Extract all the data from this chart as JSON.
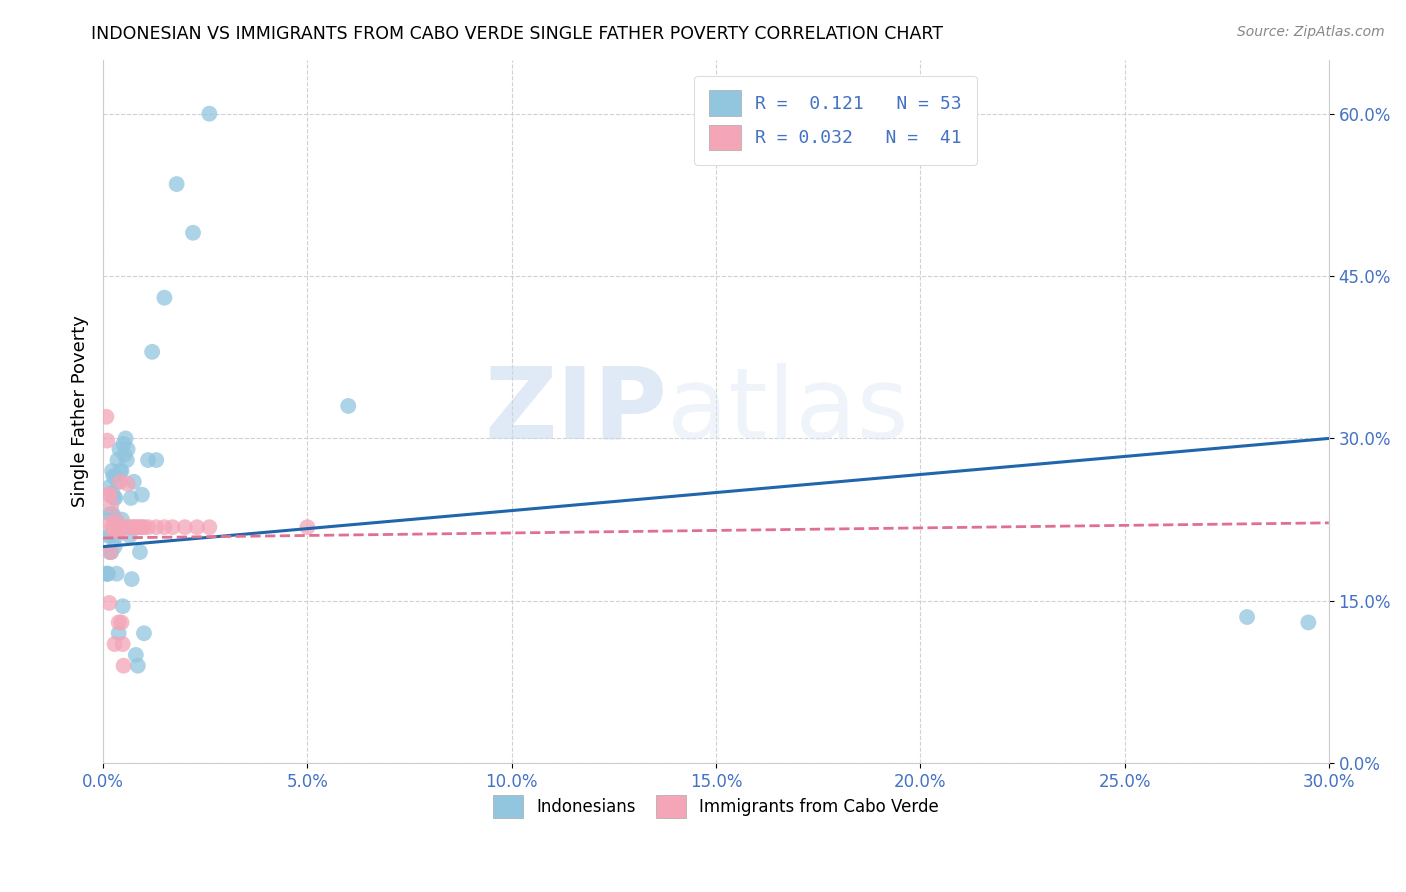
{
  "title": "INDONESIAN VS IMMIGRANTS FROM CABO VERDE SINGLE FATHER POVERTY CORRELATION CHART",
  "source": "Source: ZipAtlas.com",
  "ylabel_label": "Single Father Poverty",
  "legend_label_1": "Indonesians",
  "legend_label_2": "Immigrants from Cabo Verde",
  "R1": 0.121,
  "N1": 53,
  "R2": 0.032,
  "N2": 41,
  "color_blue": "#92c5de",
  "color_pink": "#f4a5b8",
  "line_color_blue": "#2166ac",
  "line_color_pink": "#e07090",
  "blue_dots_x": [
    0.0008,
    0.001,
    0.0012,
    0.0013,
    0.0015,
    0.0016,
    0.0017,
    0.0018,
    0.002,
    0.002,
    0.0022,
    0.0023,
    0.0024,
    0.0025,
    0.0026,
    0.0027,
    0.0028,
    0.003,
    0.003,
    0.0032,
    0.0033,
    0.0035,
    0.0036,
    0.0038,
    0.004,
    0.0042,
    0.0045,
    0.0046,
    0.0048,
    0.005,
    0.0052,
    0.0055,
    0.0058,
    0.006,
    0.0065,
    0.0068,
    0.007,
    0.0075,
    0.008,
    0.0085,
    0.009,
    0.0095,
    0.01,
    0.011,
    0.012,
    0.013,
    0.015,
    0.018,
    0.022,
    0.026,
    0.06,
    0.28,
    0.295
  ],
  "blue_dots_y": [
    0.175,
    0.175,
    0.175,
    0.21,
    0.255,
    0.195,
    0.23,
    0.21,
    0.23,
    0.195,
    0.27,
    0.25,
    0.23,
    0.265,
    0.245,
    0.225,
    0.2,
    0.265,
    0.245,
    0.21,
    0.175,
    0.28,
    0.26,
    0.12,
    0.29,
    0.27,
    0.27,
    0.225,
    0.145,
    0.295,
    0.285,
    0.3,
    0.28,
    0.29,
    0.21,
    0.245,
    0.17,
    0.26,
    0.1,
    0.09,
    0.195,
    0.248,
    0.12,
    0.28,
    0.38,
    0.28,
    0.43,
    0.535,
    0.49,
    0.6,
    0.33,
    0.135,
    0.13
  ],
  "pink_dots_x": [
    0.0008,
    0.001,
    0.0012,
    0.0015,
    0.0016,
    0.0017,
    0.0018,
    0.002,
    0.0022,
    0.0024,
    0.0025,
    0.0027,
    0.0028,
    0.003,
    0.0032,
    0.0034,
    0.0036,
    0.0038,
    0.004,
    0.0042,
    0.0045,
    0.0048,
    0.005,
    0.0055,
    0.006,
    0.0065,
    0.007,
    0.0075,
    0.008,
    0.0085,
    0.009,
    0.0095,
    0.01,
    0.011,
    0.013,
    0.015,
    0.017,
    0.02,
    0.023,
    0.026,
    0.05
  ],
  "pink_dots_y": [
    0.32,
    0.298,
    0.248,
    0.148,
    0.248,
    0.222,
    0.195,
    0.238,
    0.218,
    0.218,
    0.218,
    0.215,
    0.11,
    0.218,
    0.218,
    0.224,
    0.215,
    0.13,
    0.215,
    0.26,
    0.13,
    0.11,
    0.09,
    0.218,
    0.258,
    0.218,
    0.218,
    0.218,
    0.218,
    0.218,
    0.218,
    0.218,
    0.218,
    0.218,
    0.218,
    0.218,
    0.218,
    0.218,
    0.218,
    0.218,
    0.218
  ],
  "blue_line_x0": 0.0,
  "blue_line_x1": 0.3,
  "blue_line_y0": 0.2,
  "blue_line_y1": 0.3,
  "pink_line_x0": 0.0,
  "pink_line_x1": 0.3,
  "pink_line_y0": 0.208,
  "pink_line_y1": 0.222,
  "xlim": [
    0.0,
    0.3
  ],
  "ylim": [
    0.0,
    0.65
  ],
  "x_ticks": [
    0.0,
    0.05,
    0.1,
    0.15,
    0.2,
    0.25,
    0.3
  ],
  "y_ticks": [
    0.0,
    0.15,
    0.3,
    0.45,
    0.6
  ],
  "watermark_zip": "ZIP",
  "watermark_atlas": "atlas",
  "figsize": [
    14.06,
    8.92
  ],
  "dpi": 100
}
